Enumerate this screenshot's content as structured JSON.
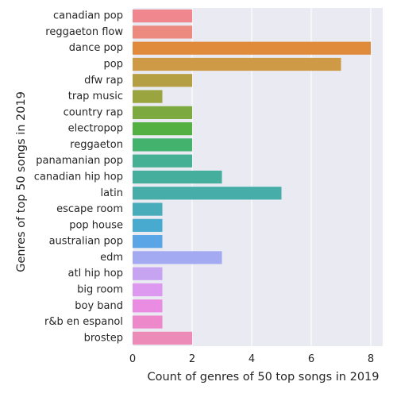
{
  "chart_data": {
    "type": "bar",
    "orientation": "horizontal",
    "title": "",
    "xlabel": "Count of genres of 50 top songs in 2019",
    "ylabel": "Genres of top 50 songs in 2019",
    "xlim": [
      0,
      8.4
    ],
    "xticks": [
      0,
      2,
      4,
      6,
      8
    ],
    "grid": true,
    "legend": "none",
    "categories": [
      "canadian pop",
      "reggaeton flow",
      "dance pop",
      "pop",
      "dfw rap",
      "trap music",
      "country rap",
      "electropop",
      "reggaeton",
      "panamanian pop",
      "canadian hip hop",
      "latin",
      "escape room",
      "pop house",
      "australian pop",
      "edm",
      "atl hip hop",
      "big room",
      "boy band",
      "r&b en espanol",
      "brostep"
    ],
    "values": [
      2,
      2,
      8,
      7,
      2,
      1,
      2,
      2,
      2,
      2,
      3,
      5,
      1,
      1,
      1,
      3,
      1,
      1,
      1,
      1,
      2
    ],
    "colors": [
      "#f0868e",
      "#ec8a80",
      "#e08a3c",
      "#cf9a45",
      "#b4a042",
      "#9ba540",
      "#7daa40",
      "#55b043",
      "#43b26d",
      "#45b093",
      "#46ae9c",
      "#47ada8",
      "#48acba",
      "#49aad0",
      "#5aa5e6",
      "#a4aaf2",
      "#c7a4f1",
      "#dd98ef",
      "#ea8de2",
      "#ed88ca",
      "#ec8bb7"
    ],
    "background": "#eaeaf2"
  }
}
